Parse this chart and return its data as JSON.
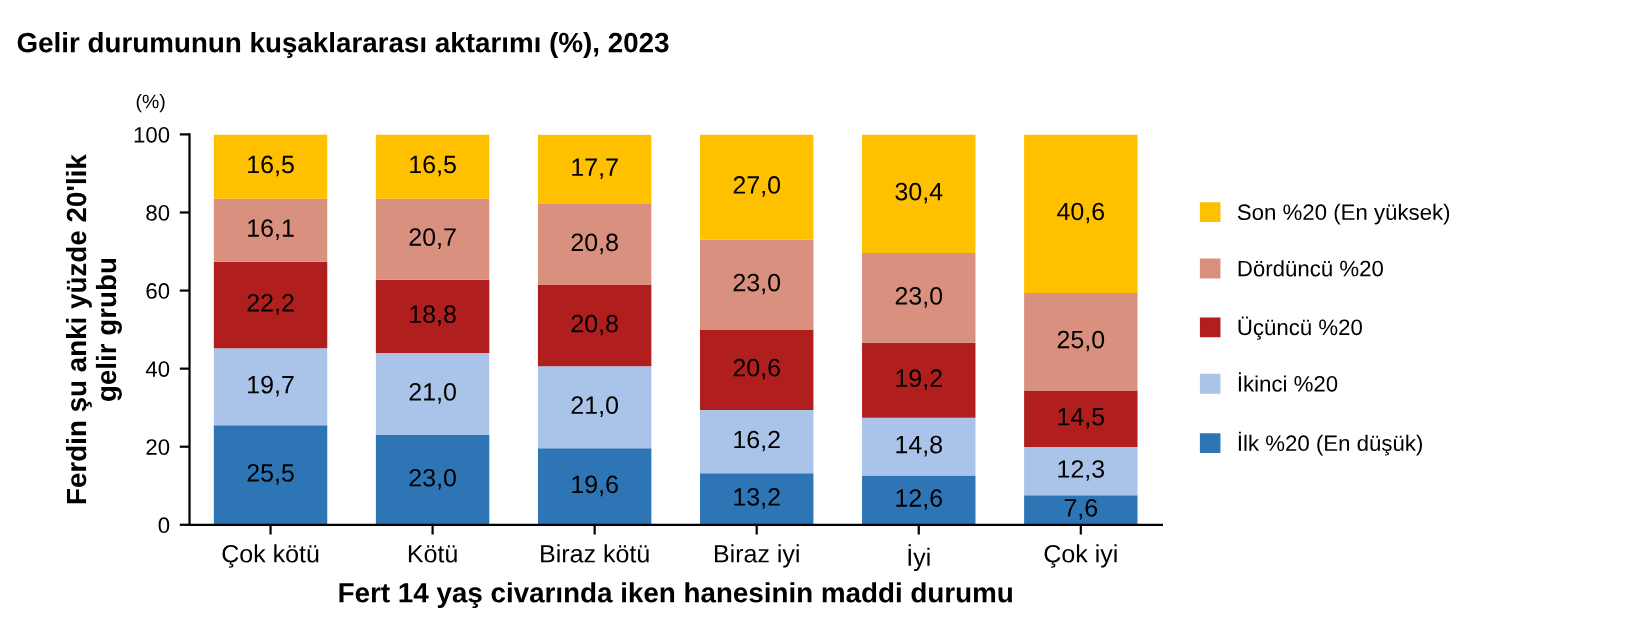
{
  "chart_data": {
    "type": "bar",
    "stacked": true,
    "title": "Gelir durumunun kuşaklararası aktarımı (%), 2023",
    "xlabel": "Fert 14 yaş civarında iken hanesinin maddi durumu",
    "ylabel": "Ferdin şu anki yüzde 20'lik\ngelir grubu",
    "annotations": [
      "(%)"
    ],
    "categories": [
      "Çok kötü",
      "Kötü",
      "Biraz kötü",
      "Biraz iyi",
      "İyi",
      "Çok iyi"
    ],
    "series": [
      {
        "name": "İlk %20 (En düşük)",
        "color": "#2e75b6",
        "values": [
          25.5,
          23.0,
          19.6,
          13.2,
          12.6,
          7.6
        ],
        "value_labels": [
          "25,5",
          "23,0",
          "19,6",
          "13,2",
          "12,6",
          "7,6"
        ]
      },
      {
        "name": "İkinci %20",
        "color": "#a9c4e8",
        "values": [
          19.7,
          21.0,
          21.0,
          16.2,
          14.8,
          12.3
        ],
        "value_labels": [
          "19,7",
          "21,0",
          "21,0",
          "16,2",
          "14,8",
          "12,3"
        ]
      },
      {
        "name": "Üçüncü %20",
        "color": "#b01e1e",
        "values": [
          22.2,
          18.8,
          20.8,
          20.6,
          19.2,
          14.5
        ],
        "value_labels": [
          "22,2",
          "18,8",
          "20,8",
          "20,6",
          "19,2",
          "14,5"
        ]
      },
      {
        "name": "Dördüncü %20",
        "color": "#d9907e",
        "values": [
          16.1,
          20.7,
          20.8,
          23.0,
          23.0,
          25.0
        ],
        "value_labels": [
          "16,1",
          "20,7",
          "20,8",
          "23,0",
          "23,0",
          "25,0"
        ]
      },
      {
        "name": "Son %20 (En yüksek)",
        "color": "#ffc000",
        "values": [
          16.5,
          16.5,
          17.7,
          27.0,
          30.4,
          40.6
        ],
        "value_labels": [
          "16,5",
          "16,5",
          "17,7",
          "27,0",
          "30,4",
          "40,6"
        ]
      }
    ],
    "ylim": [
      0,
      100
    ],
    "yticks": [
      0,
      20,
      40,
      60,
      80,
      100
    ],
    "grid": false,
    "legend": "right"
  }
}
